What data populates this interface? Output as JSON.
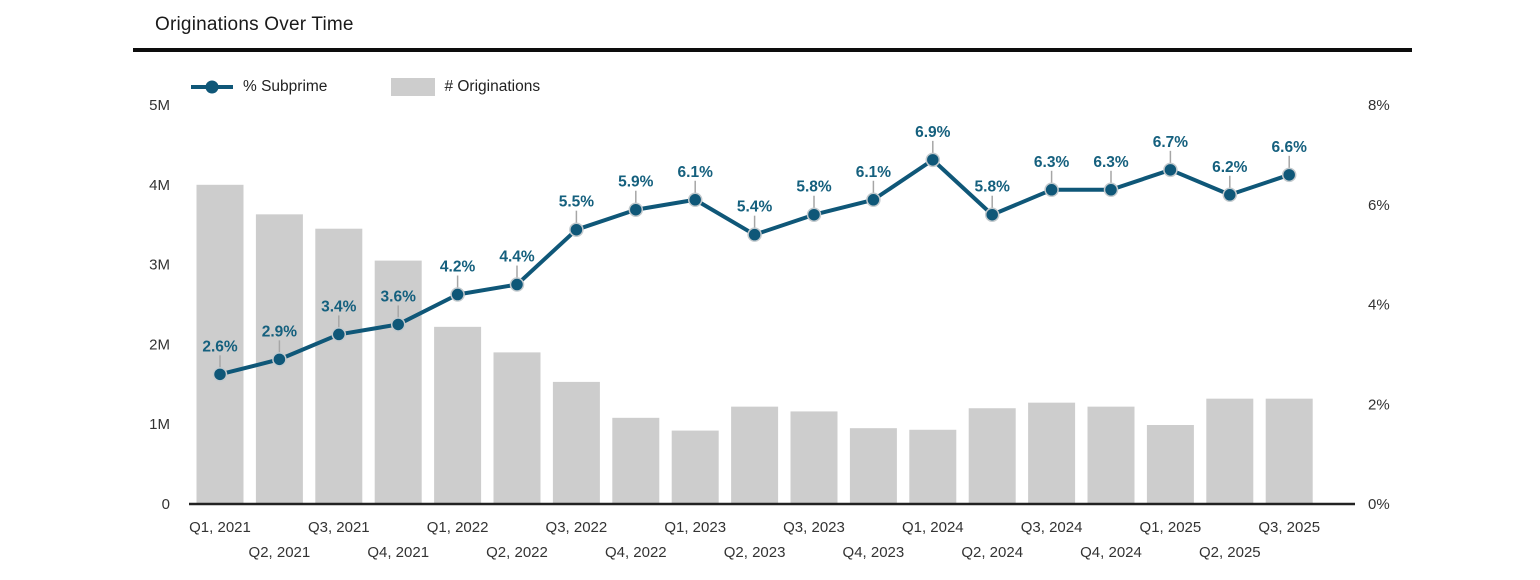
{
  "title": "Originations Over Time",
  "legend": {
    "line_label": "% Subprime",
    "bar_label": "# Originations"
  },
  "colors": {
    "line": "#0F5778",
    "data_label": "#15607E",
    "bar": "#CDCDCD",
    "leader": "#A6A6A6",
    "axis": "#222222",
    "tick_text": "#333333",
    "marker_halo": "#C2C9CD"
  },
  "chart_data": {
    "type": "combo",
    "title": "Originations Over Time",
    "categories": [
      "Q1, 2021",
      "Q2, 2021",
      "Q3, 2021",
      "Q4, 2021",
      "Q1, 2022",
      "Q2, 2022",
      "Q3, 2022",
      "Q4, 2022",
      "Q1, 2023",
      "Q2, 2023",
      "Q3, 2023",
      "Q4, 2023",
      "Q1, 2024",
      "Q2, 2024",
      "Q3, 2024",
      "Q4, 2024",
      "Q1, 2025",
      "Q2, 2025",
      "Q3, 2025"
    ],
    "series": [
      {
        "name": "# Originations",
        "type": "bar",
        "axis": "left",
        "unit": "millions",
        "values": [
          4.0,
          3.63,
          3.45,
          3.05,
          2.22,
          1.9,
          1.53,
          1.08,
          0.92,
          1.22,
          1.16,
          0.95,
          0.93,
          1.2,
          1.27,
          1.22,
          0.99,
          1.32,
          1.32
        ]
      },
      {
        "name": "% Subprime",
        "type": "line",
        "axis": "right",
        "unit": "%",
        "values": [
          2.6,
          2.9,
          3.4,
          3.6,
          4.2,
          4.4,
          5.5,
          5.9,
          6.1,
          5.4,
          5.8,
          6.1,
          6.9,
          5.8,
          6.3,
          6.3,
          6.7,
          6.2,
          6.6
        ],
        "point_labels": [
          "2.6%",
          "2.9%",
          "3.4%",
          "3.6%",
          "4.2%",
          "4.4%",
          "5.5%",
          "5.9%",
          "6.1%",
          "5.4%",
          "5.8%",
          "6.1%",
          "6.9%",
          "5.8%",
          "6.3%",
          "6.3%",
          "6.7%",
          "6.2%",
          "6.6%"
        ]
      }
    ],
    "left_axis": {
      "range_millions": [
        0,
        5
      ],
      "ticks": [
        "0",
        "1M",
        "2M",
        "3M",
        "4M",
        "5M"
      ]
    },
    "right_axis": {
      "range_pct": [
        0,
        8
      ],
      "ticks": [
        "0%",
        "2%",
        "4%",
        "6%",
        "8%"
      ]
    },
    "legend_position": "top-left",
    "grid": false,
    "x_tick_layout": "staggered-two-rows"
  }
}
